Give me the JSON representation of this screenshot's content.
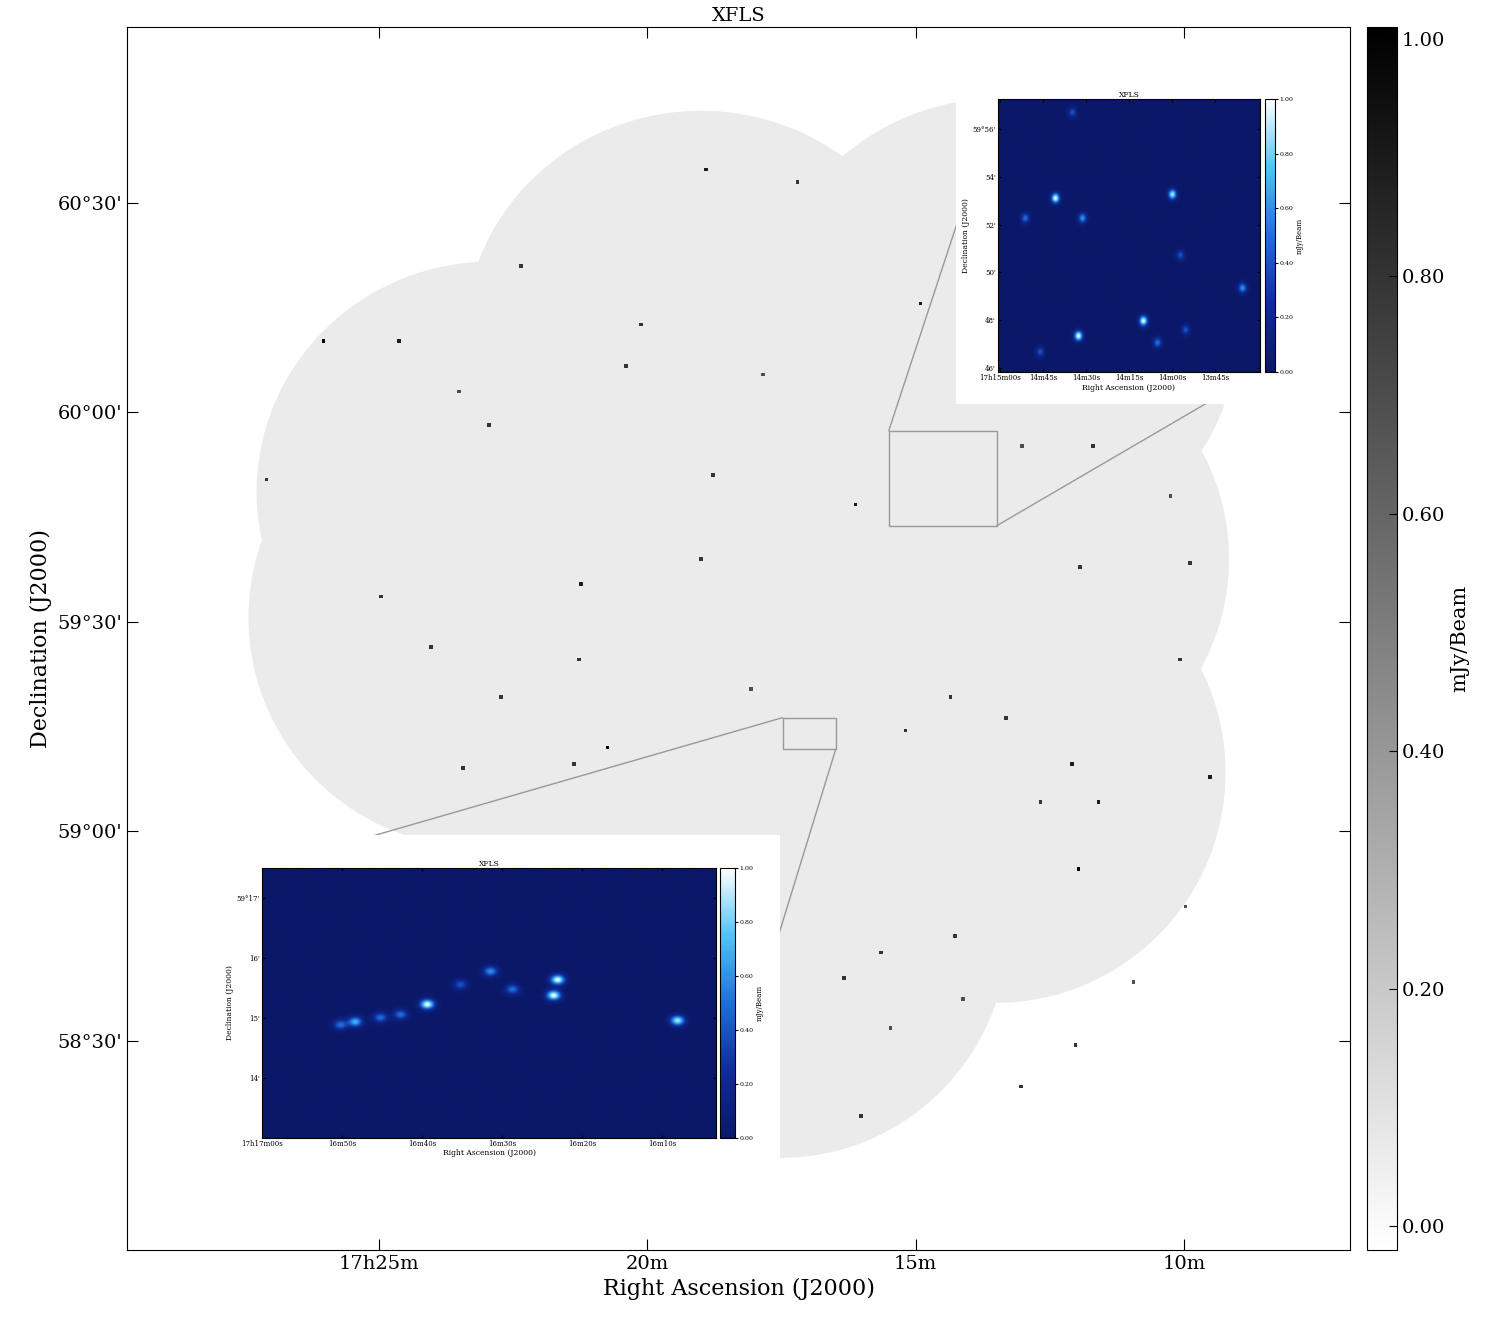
{
  "chart_data": {
    "type": "image",
    "title": "XFLS",
    "x_label": "Right Ascension (J2000)",
    "y_label": "Declination (J2000)",
    "xlim": [
      29.7,
      6.9
    ],
    "ylim": [
      58.0,
      60.92
    ],
    "xticks": [
      {
        "value": 25,
        "label": "17h25m"
      },
      {
        "value": 20,
        "label": "20m"
      },
      {
        "value": 15,
        "label": "15m"
      },
      {
        "value": 10,
        "label": "10m"
      }
    ],
    "yticks": [
      {
        "value": 58.5,
        "label": "58°30'"
      },
      {
        "value": 59,
        "label": "59°00'"
      },
      {
        "value": 59.5,
        "label": "59°30'"
      },
      {
        "value": 60,
        "label": "60°00'"
      },
      {
        "value": 60.5,
        "label": "60°30'"
      }
    ],
    "color_bar": {
      "label": "mJy/Beam",
      "range": [
        -0.02,
        1.01
      ],
      "ticks": [
        {
          "value": 0,
          "label": "0.00"
        },
        {
          "value": 0.2,
          "label": "0.20"
        },
        {
          "value": 0.4,
          "label": "0.40"
        },
        {
          "value": 0.6,
          "label": "0.60"
        },
        {
          "value": 0.8,
          "label": "0.80"
        },
        {
          "value": 1,
          "label": "1.00"
        }
      ]
    },
    "coverage": {
      "radius": 33,
      "pointings": [
        {
          "ra": 19.0,
          "dec": 60.17
        },
        {
          "ra": 22.91,
          "dec": 59.81
        },
        {
          "ra": 23.1,
          "dec": 59.51
        },
        {
          "ra": 17.51,
          "dec": 58.77
        },
        {
          "ra": 13.51,
          "dec": 59.14
        },
        {
          "ra": 13.51,
          "dec": 59.65
        },
        {
          "ra": 13.42,
          "dec": 60.2
        },
        {
          "ra": 18.26,
          "dec": 59.65
        },
        {
          "ra": 20.87,
          "dec": 59.32
        }
      ]
    },
    "sources": {
      "ra": [
        18.91,
        17.2,
        26.04,
        24.63,
        20.12,
        14.91,
        22.95,
        23.51,
        20.4,
        17.85,
        16.12,
        18.78,
        11.69,
        13.01,
        21.24,
        21.28,
        20.74,
        24.96,
        23.44,
        21.37,
        11.93,
        9.88,
        10.07,
        9.51,
        12.08,
        11.96,
        14.35,
        15.19,
        14.26,
        15.65,
        10.94,
        16.34,
        12.02,
        13.04,
        16.02,
        15.47,
        14.11,
        9.97,
        22.36,
        11.59,
        12.67,
        13.32,
        10.25,
        19.0,
        18.07,
        22.73,
        24.03,
        27.1
      ],
      "dec": [
        60.58,
        60.55,
        60.17,
        60.17,
        60.21,
        60.26,
        59.97,
        60.05,
        60.11,
        60.09,
        59.78,
        59.85,
        59.92,
        59.92,
        59.59,
        59.41,
        59.2,
        59.56,
        59.15,
        59.16,
        59.63,
        59.64,
        59.41,
        59.13,
        59.16,
        58.91,
        59.32,
        59.24,
        58.75,
        58.71,
        58.64,
        58.65,
        58.49,
        58.39,
        58.32,
        58.53,
        58.6,
        58.82,
        60.35,
        59.07,
        59.07,
        59.27,
        59.8,
        59.65,
        59.34,
        59.32,
        59.44,
        59.84
      ],
      "flux": [
        0.9,
        0.8,
        1.0,
        0.9,
        0.8,
        0.9,
        0.8,
        0.7,
        0.8,
        0.7,
        0.9,
        0.8,
        0.8,
        0.7,
        0.9,
        0.8,
        1.0,
        0.8,
        0.8,
        0.8,
        0.8,
        0.8,
        0.8,
        0.9,
        0.9,
        1.0,
        0.8,
        0.8,
        0.8,
        0.8,
        0.7,
        0.8,
        0.8,
        0.8,
        0.8,
        0.7,
        0.7,
        0.7,
        0.8,
        0.9,
        0.8,
        0.8,
        0.7,
        0.8,
        0.7,
        0.8,
        0.8,
        0.8
      ]
    },
    "insets": [
      {
        "title": "XFLS",
        "x_label": "Right Ascension (J2000)",
        "y_label": "Declination (J2000)",
        "region": {
          "ra": [
            15.5,
            13.49
          ],
          "dec": [
            59.729,
            59.956
          ]
        },
        "xlim": [
          900.7,
          809.4
        ],
        "ylim": [
          45.83,
          57.25
        ],
        "xticks": [
          {
            "value": 900,
            "label": "17h15m00s"
          },
          {
            "value": 885,
            "label": "14m45s"
          },
          {
            "value": 870,
            "label": "14m30s"
          },
          {
            "value": 855,
            "label": "14m15s"
          },
          {
            "value": 840,
            "label": "14m00s"
          },
          {
            "value": 825,
            "label": "13m45s"
          }
        ],
        "yticks": [
          {
            "value": 46,
            "label": "46'"
          },
          {
            "value": 48,
            "label": "48'"
          },
          {
            "value": 50,
            "label": "50'"
          },
          {
            "value": 52,
            "label": "52'"
          },
          {
            "value": 54,
            "label": "54'"
          },
          {
            "value": 56,
            "label": "59°56'"
          }
        ],
        "color_bar": {
          "label": "mJy/Beam",
          "range": [
            0,
            1
          ],
          "ticks": [
            {
              "value": 0,
              "label": "0.00"
            },
            {
              "value": 0.2,
              "label": "0.20"
            },
            {
              "value": 0.4,
              "label": "0.40"
            },
            {
              "value": 0.6,
              "label": "0.60"
            },
            {
              "value": 0.8,
              "label": "0.80"
            },
            {
              "value": 1,
              "label": "1.00"
            }
          ]
        },
        "sources": {
          "ra": [
            880.8,
            840.1,
            871.4,
            891.3,
            837.3,
            815.7,
            872.8,
            850.2,
            845.3,
            835.5,
            874.9,
            886.1
          ],
          "dec": [
            53.11,
            53.27,
            52.27,
            52.27,
            50.72,
            49.34,
            47.33,
            47.96,
            47.04,
            47.58,
            56.71,
            46.66
          ],
          "flux": [
            1.0,
            0.9,
            0.6,
            0.5,
            0.4,
            0.6,
            1.0,
            1.0,
            0.5,
            0.4,
            0.4,
            0.4
          ]
        }
      },
      {
        "title": "XFLS",
        "x_label": "Right Ascension (J2000)",
        "y_label": "Declination (J2000)",
        "region": {
          "ra": [
            17.48,
            16.49
          ],
          "dec": [
            59.195,
            59.271
          ]
        },
        "xlim": [
          1020,
          963.25
        ],
        "ylim": [
          13.0,
          17.5
        ],
        "xticks": [
          {
            "value": 1020,
            "label": "17h17m00s"
          },
          {
            "value": 1010,
            "label": "16m50s"
          },
          {
            "value": 1000,
            "label": "16m40s"
          },
          {
            "value": 990,
            "label": "16m30s"
          },
          {
            "value": 980,
            "label": "16m20s"
          },
          {
            "value": 970,
            "label": "16m10s"
          }
        ],
        "yticks": [
          {
            "value": 14,
            "label": "14'"
          },
          {
            "value": 15,
            "label": "15'"
          },
          {
            "value": 16,
            "label": "16'"
          },
          {
            "value": 17,
            "label": "59°17'"
          }
        ],
        "color_bar": {
          "label": "mJy/Beam",
          "range": [
            0,
            1
          ],
          "ticks": [
            {
              "value": 0,
              "label": "0.00"
            },
            {
              "value": 0.2,
              "label": "0.20"
            },
            {
              "value": 0.4,
              "label": "0.40"
            },
            {
              "value": 0.6,
              "label": "0.60"
            },
            {
              "value": 0.8,
              "label": "0.80"
            },
            {
              "value": 1,
              "label": "1.00"
            }
          ]
        },
        "sources": {
          "ra": [
            1008.4,
            1010.25,
            1005.25,
            1002.75,
            999.4,
            995.25,
            991.5,
            988.75,
            983.1,
            983.6,
            968.1
          ],
          "dec": [
            14.93,
            14.88,
            15.0,
            15.05,
            15.22,
            15.55,
            15.77,
            15.47,
            15.63,
            15.37,
            14.95
          ],
          "flux": [
            0.7,
            0.5,
            0.5,
            0.5,
            1.0,
            0.4,
            0.6,
            0.5,
            1.0,
            1.0,
            0.9
          ]
        }
      }
    ]
  }
}
